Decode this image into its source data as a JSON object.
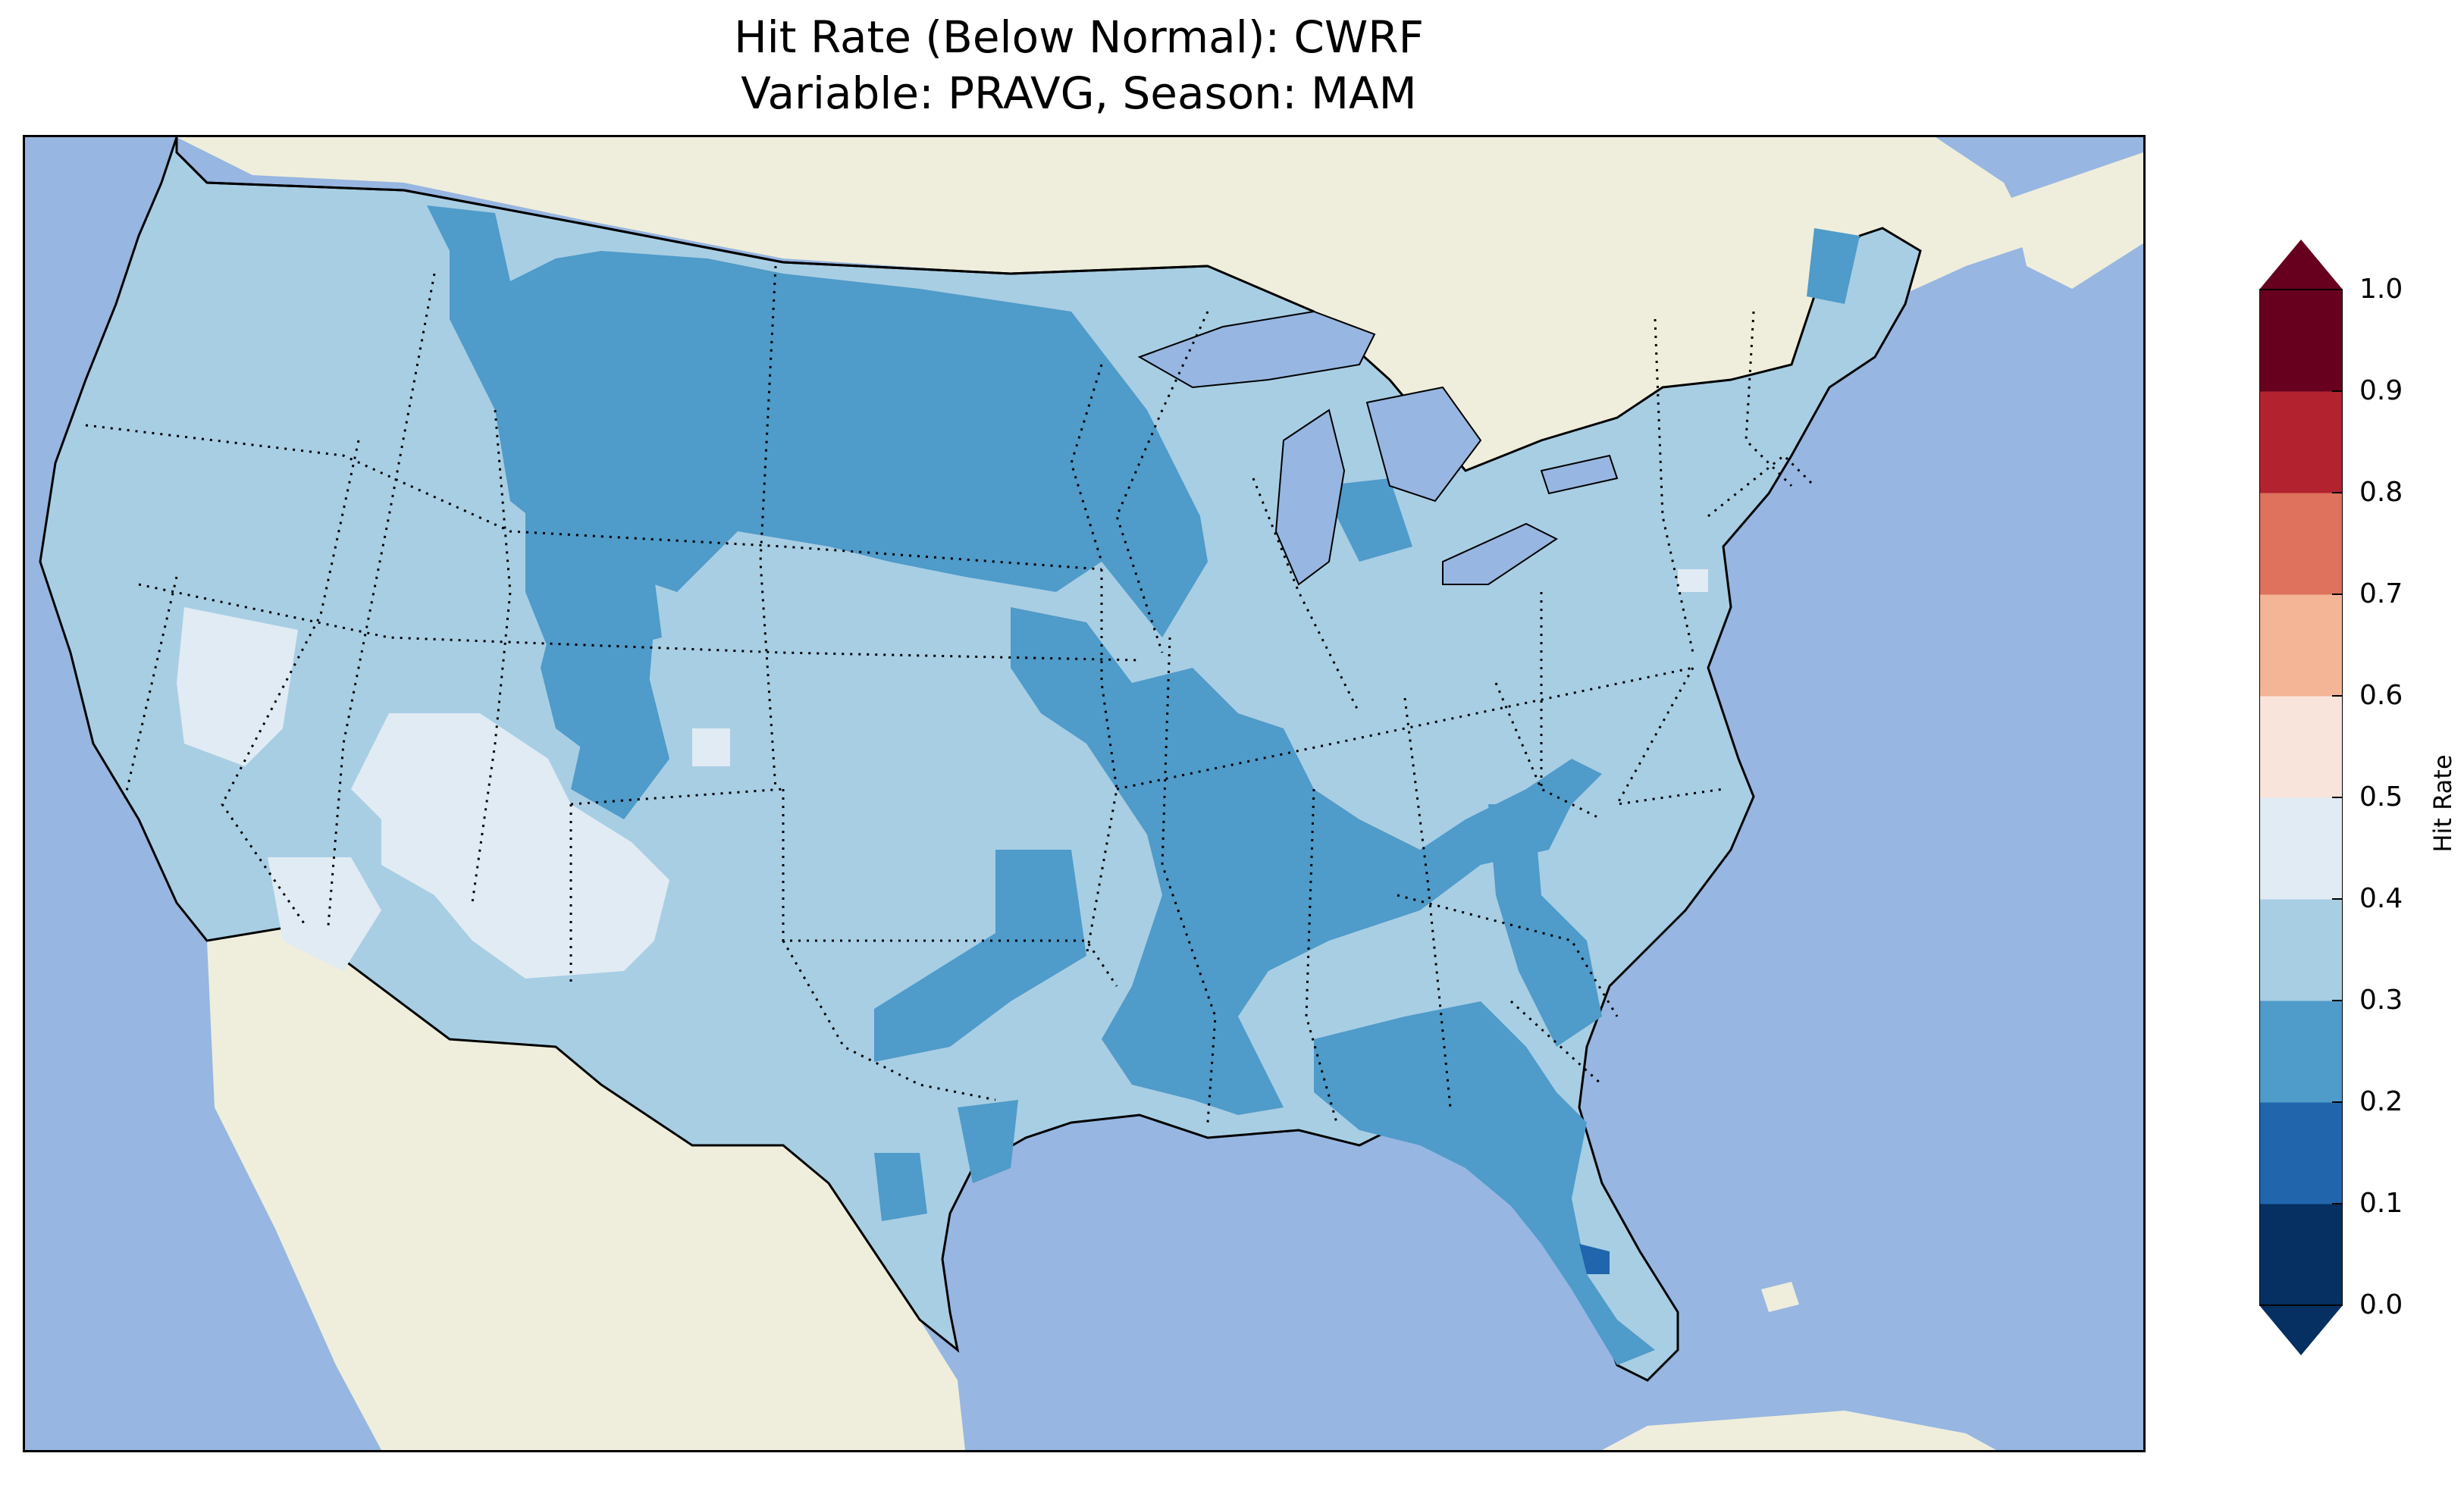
{
  "title": {
    "line1": "Hit Rate (Below Normal): CWRF",
    "line2": "Variable: PRAVG, Season: MAM"
  },
  "map": {
    "region": "contiguous-united-states",
    "ocean_color": "#97b6e1",
    "land_color": "#efeedc",
    "lake_color": "#97b6e1",
    "field": "hit-rate",
    "dominant_class": "0.3-0.4",
    "notable_zones": [
      {
        "area": "northern-plains-montana-dakotas",
        "class": "0.2-0.3"
      },
      {
        "area": "mississippi-ohio-valley",
        "class": "0.2-0.3"
      },
      {
        "area": "southeast-florida",
        "class": "0.2-0.3"
      },
      {
        "area": "southwest-nevada-arizona-utah",
        "class": "0.4-0.5"
      },
      {
        "area": "east-central-florida",
        "class": "0.1-0.2"
      }
    ]
  },
  "colorbar": {
    "label": "Hit Rate",
    "ticks": [
      "0.0",
      "0.1",
      "0.2",
      "0.3",
      "0.4",
      "0.5",
      "0.6",
      "0.7",
      "0.8",
      "0.9",
      "1.0"
    ],
    "bins": [
      {
        "range": [
          0.0,
          0.1
        ],
        "color": "#053061"
      },
      {
        "range": [
          0.1,
          0.2
        ],
        "color": "#2166ac"
      },
      {
        "range": [
          0.2,
          0.3
        ],
        "color": "#4f9bc9"
      },
      {
        "range": [
          0.3,
          0.4
        ],
        "color": "#a8cee4"
      },
      {
        "range": [
          0.4,
          0.5
        ],
        "color": "#e0ebf3"
      },
      {
        "range": [
          0.5,
          0.6
        ],
        "color": "#f8e4da"
      },
      {
        "range": [
          0.6,
          0.7
        ],
        "color": "#f4b596"
      },
      {
        "range": [
          0.7,
          0.8
        ],
        "color": "#de725c"
      },
      {
        "range": [
          0.8,
          0.9
        ],
        "color": "#b2232f"
      },
      {
        "range": [
          0.9,
          1.0
        ],
        "color": "#67001f"
      }
    ],
    "extend": "both"
  }
}
